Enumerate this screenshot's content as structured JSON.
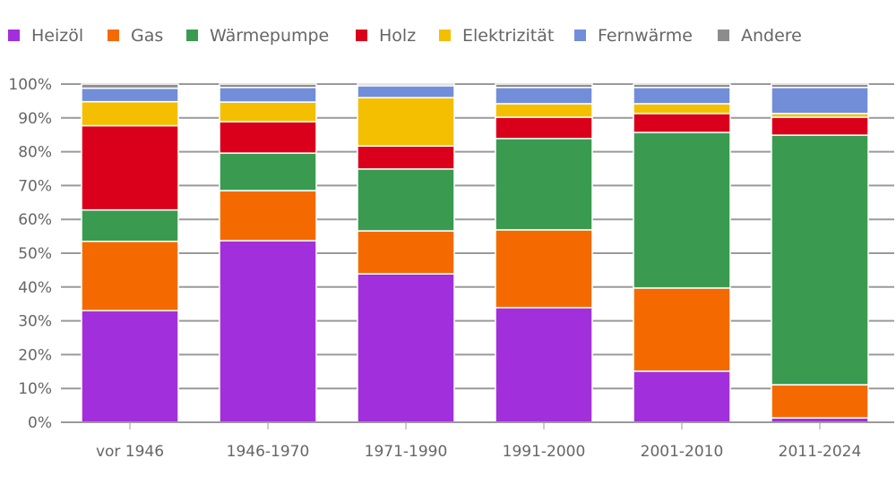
{
  "chart_data": {
    "type": "bar",
    "stacked": true,
    "categories": [
      "vor 1946",
      "1946-1970",
      "1971-1990",
      "1991-2000",
      "2001-2010",
      "2011-2024"
    ],
    "ylim": [
      0,
      100
    ],
    "yticks": [
      "0%",
      "10%",
      "20%",
      "30%",
      "40%",
      "50%",
      "60%",
      "70%",
      "80%",
      "90%",
      "100%"
    ],
    "grid": true,
    "legend_position": "top-left",
    "series": [
      {
        "name": "Heizöl",
        "color": "#a22fdc",
        "values": [
          33.0,
          53.7,
          43.9,
          33.9,
          15.1,
          1.3
        ]
      },
      {
        "name": "Gas",
        "color": "#f46a00",
        "values": [
          20.5,
          14.8,
          12.7,
          23.0,
          24.6,
          9.8
        ]
      },
      {
        "name": "Wärmepumpe",
        "color": "#3a9b50",
        "values": [
          9.3,
          11.1,
          18.3,
          27.0,
          46.0,
          73.8
        ]
      },
      {
        "name": "Holz",
        "color": "#da001b",
        "values": [
          24.9,
          9.3,
          6.8,
          6.3,
          5.6,
          5.3
        ]
      },
      {
        "name": "Elektrizität",
        "color": "#f3bf00",
        "values": [
          7.1,
          5.8,
          14.3,
          4.0,
          2.9,
          1.1
        ]
      },
      {
        "name": "Fernwärme",
        "color": "#728ed8",
        "values": [
          4.0,
          4.3,
          3.5,
          4.8,
          4.8,
          7.7
        ]
      },
      {
        "name": "Andere",
        "color": "#8c8c8c",
        "values": [
          1.2,
          1.0,
          0.5,
          1.0,
          1.0,
          1.0
        ]
      }
    ]
  }
}
